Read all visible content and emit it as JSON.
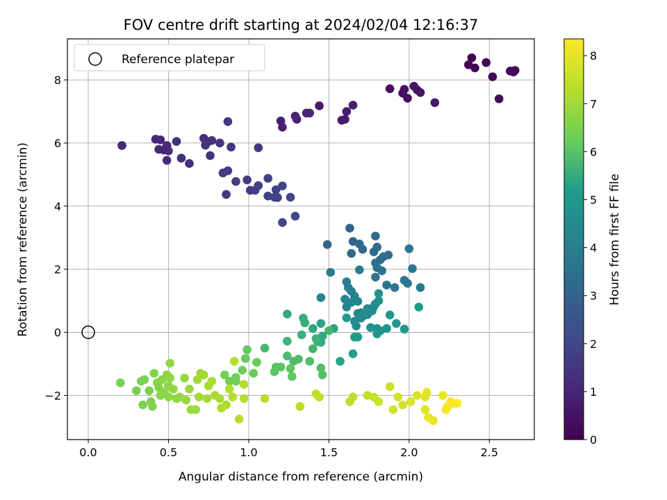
{
  "chart_data": {
    "type": "scatter",
    "title": "FOV centre drift starting at 2024/02/04 12:16:37",
    "xlabel": "Angular distance from reference (arcmin)",
    "ylabel": "Rotation from reference (arcmin)",
    "xlim": [
      -0.13,
      2.78
    ],
    "ylim": [
      -3.4,
      9.3
    ],
    "x_ticks": [
      0.0,
      0.5,
      1.0,
      1.5,
      2.0,
      2.5
    ],
    "x_tick_labels": [
      "0.0",
      "0.5",
      "1.0",
      "1.5",
      "2.0",
      "2.5"
    ],
    "y_ticks": [
      -2,
      0,
      2,
      4,
      6,
      8
    ],
    "y_tick_labels": [
      "−2",
      "0",
      "2",
      "4",
      "6",
      "8"
    ],
    "grid": true,
    "legend": {
      "position": "top-left",
      "label": "Reference platepar",
      "marker": "open-circle"
    },
    "reference_point": {
      "x": 0.0,
      "y": 0.0
    },
    "colorbar": {
      "label": "Hours from first FF file",
      "colormap": "viridis",
      "range": [
        0,
        8.35
      ],
      "ticks": [
        0,
        1,
        2,
        3,
        4,
        5,
        6,
        7,
        8
      ],
      "tick_labels": [
        "0",
        "1",
        "2",
        "3",
        "4",
        "5",
        "6",
        "7",
        "8"
      ]
    },
    "colormap_stops": [
      "#440154",
      "#482777",
      "#3f4a8a",
      "#31678e",
      "#26838f",
      "#1f9d8a",
      "#6cce5a",
      "#b6de2b",
      "#fee825"
    ],
    "series": [
      {
        "hours_range": [
          0.0,
          1.0
        ],
        "points": [
          [
            2.39,
            8.7
          ],
          [
            2.37,
            8.48
          ],
          [
            2.41,
            8.38
          ],
          [
            2.48,
            8.55
          ],
          [
            2.52,
            8.1
          ],
          [
            2.63,
            8.28
          ],
          [
            2.65,
            8.25
          ],
          [
            2.66,
            8.3
          ],
          [
            2.56,
            7.4
          ],
          [
            1.88,
            7.72
          ],
          [
            1.96,
            7.58
          ],
          [
            1.97,
            7.7
          ],
          [
            1.99,
            7.42
          ],
          [
            2.03,
            7.8
          ],
          [
            2.05,
            7.68
          ],
          [
            2.07,
            7.6
          ],
          [
            2.16,
            7.28
          ],
          [
            1.44,
            7.18
          ],
          [
            1.58,
            6.72
          ],
          [
            1.6,
            6.75
          ],
          [
            1.61,
            7.0
          ],
          [
            1.65,
            7.2
          ],
          [
            1.2,
            6.7
          ],
          [
            1.21,
            6.5
          ],
          [
            1.29,
            6.85
          ],
          [
            1.3,
            6.75
          ],
          [
            1.36,
            6.95
          ],
          [
            1.38,
            6.95
          ]
        ]
      },
      {
        "hours_range": [
          1.0,
          2.0
        ],
        "points": [
          [
            0.21,
            5.92
          ],
          [
            0.42,
            6.12
          ],
          [
            0.45,
            6.1
          ],
          [
            0.44,
            5.8
          ],
          [
            0.47,
            5.78
          ],
          [
            0.49,
            5.92
          ],
          [
            0.5,
            5.75
          ],
          [
            0.49,
            5.45
          ],
          [
            0.55,
            6.05
          ],
          [
            0.58,
            5.52
          ],
          [
            0.63,
            5.35
          ],
          [
            0.72,
            6.15
          ],
          [
            0.73,
            5.93
          ],
          [
            0.75,
            6.05
          ],
          [
            0.77,
            6.08
          ],
          [
            0.76,
            5.6
          ],
          [
            0.82,
            6.0
          ],
          [
            0.87,
            6.68
          ],
          [
            0.89,
            5.87
          ],
          [
            1.06,
            5.85
          ],
          [
            0.84,
            5.05
          ],
          [
            0.86,
            4.37
          ],
          [
            0.87,
            5.12
          ],
          [
            0.92,
            4.78
          ],
          [
            0.99,
            4.83
          ],
          [
            1.01,
            4.5
          ],
          [
            1.04,
            4.5
          ],
          [
            1.06,
            4.65
          ],
          [
            1.12,
            4.88
          ],
          [
            1.12,
            4.32
          ],
          [
            1.16,
            4.28
          ],
          [
            1.17,
            4.52
          ],
          [
            1.18,
            4.27
          ],
          [
            1.21,
            4.64
          ],
          [
            1.21,
            3.48
          ],
          [
            1.26,
            4.28
          ],
          [
            1.29,
            3.68
          ]
        ]
      },
      {
        "hours_range": [
          3.0,
          4.2
        ],
        "points": [
          [
            1.49,
            2.78
          ],
          [
            1.63,
            3.3
          ],
          [
            1.65,
            2.88
          ],
          [
            1.64,
            2.5
          ],
          [
            1.69,
            2.8
          ],
          [
            1.71,
            2.63
          ],
          [
            1.78,
            2.55
          ],
          [
            1.79,
            3.05
          ],
          [
            1.8,
            2.7
          ],
          [
            1.82,
            2.3
          ],
          [
            1.84,
            2.4
          ],
          [
            1.87,
            2.45
          ],
          [
            1.79,
            2.2
          ],
          [
            1.8,
            2.05
          ],
          [
            1.83,
            1.95
          ],
          [
            1.79,
            1.75
          ],
          [
            1.86,
            1.5
          ],
          [
            1.91,
            1.42
          ],
          [
            1.97,
            1.65
          ],
          [
            1.99,
            1.55
          ],
          [
            2.0,
            2.65
          ],
          [
            2.02,
            2.02
          ],
          [
            2.07,
            1.42
          ],
          [
            1.51,
            1.9
          ],
          [
            1.69,
            1.98
          ],
          [
            1.61,
            1.6
          ],
          [
            1.62,
            1.42
          ],
          [
            1.64,
            1.3
          ],
          [
            1.66,
            1.15
          ],
          [
            1.45,
            1.1
          ],
          [
            1.6,
            1.05
          ],
          [
            1.68,
            0.98
          ]
        ]
      },
      {
        "hours_range": [
          4.2,
          5.5
        ],
        "points": [
          [
            1.61,
            0.8
          ],
          [
            1.64,
            0.95
          ],
          [
            1.68,
            0.6
          ],
          [
            1.7,
            0.62
          ],
          [
            1.7,
            0.45
          ],
          [
            1.66,
            0.35
          ],
          [
            1.67,
            0.2
          ],
          [
            1.71,
            0.5
          ],
          [
            1.74,
            0.56
          ],
          [
            1.74,
            0.75
          ],
          [
            1.77,
            0.68
          ],
          [
            1.78,
            0.82
          ],
          [
            1.79,
            0.9
          ],
          [
            1.81,
            1.0
          ],
          [
            1.81,
            1.23
          ],
          [
            1.76,
            0.15
          ],
          [
            1.8,
            0.12
          ],
          [
            1.82,
            0.05
          ],
          [
            1.8,
            -0.05
          ],
          [
            1.86,
            0.12
          ],
          [
            1.88,
            0.55
          ],
          [
            1.92,
            0.28
          ],
          [
            1.97,
            0.1
          ],
          [
            2.06,
            0.8
          ],
          [
            1.61,
            0.46
          ],
          [
            1.66,
            -0.15
          ],
          [
            1.68,
            -0.15
          ],
          [
            1.65,
            -0.68
          ],
          [
            1.57,
            -0.92
          ],
          [
            1.53,
            0.12
          ],
          [
            1.45,
            0.28
          ],
          [
            1.4,
            0.12
          ],
          [
            1.46,
            -0.12
          ],
          [
            1.45,
            -0.32
          ]
        ]
      },
      {
        "hours_range": [
          5.5,
          6.4
        ],
        "points": [
          [
            1.24,
            0.58
          ],
          [
            1.34,
            0.45
          ],
          [
            1.35,
            0.3
          ],
          [
            1.33,
            -0.08
          ],
          [
            1.42,
            -0.2
          ],
          [
            1.43,
            -0.3
          ],
          [
            1.24,
            -0.28
          ],
          [
            1.4,
            -0.52
          ],
          [
            1.5,
            0.05
          ],
          [
            1.1,
            -0.5
          ],
          [
            1.24,
            -0.75
          ],
          [
            1.28,
            -0.92
          ],
          [
            1.31,
            -0.85
          ],
          [
            1.38,
            -0.92
          ],
          [
            1.45,
            -1.13
          ],
          [
            1.46,
            -1.35
          ],
          [
            1.17,
            -1.1
          ],
          [
            1.2,
            -1.1
          ],
          [
            1.16,
            -1.25
          ],
          [
            1.26,
            -1.15
          ],
          [
            1.27,
            -1.4
          ],
          [
            0.99,
            -0.55
          ],
          [
            0.98,
            -0.83
          ],
          [
            1.05,
            -0.95
          ],
          [
            1.03,
            -1.3
          ],
          [
            0.96,
            -1.2
          ],
          [
            0.92,
            -1.43
          ],
          [
            0.92,
            -1.55
          ],
          [
            0.88,
            -1.55
          ],
          [
            0.85,
            -1.35
          ]
        ]
      },
      {
        "hours_range": [
          6.4,
          7.4
        ],
        "points": [
          [
            0.2,
            -1.6
          ],
          [
            0.3,
            -1.85
          ],
          [
            0.33,
            -1.55
          ],
          [
            0.35,
            -1.5
          ],
          [
            0.34,
            -2.3
          ],
          [
            0.38,
            -1.85
          ],
          [
            0.39,
            -2.2
          ],
          [
            0.4,
            -2.35
          ],
          [
            0.41,
            -1.3
          ],
          [
            0.43,
            -1.6
          ],
          [
            0.44,
            -1.75
          ],
          [
            0.45,
            -2.0
          ],
          [
            0.46,
            -1.5
          ],
          [
            0.47,
            -1.9
          ],
          [
            0.49,
            -1.35
          ],
          [
            0.5,
            -1.7
          ],
          [
            0.5,
            -2.05
          ],
          [
            0.51,
            -1.45
          ],
          [
            0.51,
            -0.98
          ],
          [
            0.53,
            -1.8
          ],
          [
            0.55,
            -2.1
          ],
          [
            0.57,
            -2.05
          ],
          [
            0.6,
            -1.45
          ],
          [
            0.61,
            -2.15
          ],
          [
            0.63,
            -1.8
          ],
          [
            0.64,
            -2.45
          ],
          [
            0.67,
            -2.45
          ],
          [
            0.68,
            -1.5
          ],
          [
            0.69,
            -2.05
          ],
          [
            0.7,
            -1.3
          ],
          [
            0.72,
            -1.35
          ],
          [
            0.74,
            -2.1
          ],
          [
            0.75,
            -1.7
          ],
          [
            0.77,
            -1.55
          ],
          [
            0.79,
            -2.0
          ],
          [
            0.82,
            -2.1
          ],
          [
            0.83,
            -2.4
          ],
          [
            0.86,
            -2.3
          ],
          [
            0.88,
            -1.8
          ],
          [
            0.9,
            -2.05
          ],
          [
            0.91,
            -0.92
          ],
          [
            0.94,
            -2.75
          ],
          [
            0.97,
            -1.65
          ],
          [
            0.97,
            -2.1
          ],
          [
            1.1,
            -2.1
          ],
          [
            1.32,
            -2.35
          ],
          [
            1.42,
            -1.95
          ],
          [
            1.44,
            -2.05
          ]
        ]
      },
      {
        "hours_range": [
          7.4,
          8.35
        ],
        "points": [
          [
            1.63,
            -2.2
          ],
          [
            1.65,
            -2.05
          ],
          [
            1.74,
            -2.0
          ],
          [
            1.78,
            -2.05
          ],
          [
            1.81,
            -2.2
          ],
          [
            1.88,
            -1.72
          ],
          [
            1.9,
            -2.45
          ],
          [
            1.93,
            -2.05
          ],
          [
            1.96,
            -2.3
          ],
          [
            2.01,
            -2.2
          ],
          [
            2.05,
            -2.0
          ],
          [
            2.1,
            -2.05
          ],
          [
            2.1,
            -2.45
          ],
          [
            2.11,
            -1.9
          ],
          [
            2.12,
            -2.7
          ],
          [
            2.15,
            -2.8
          ],
          [
            2.21,
            -2.0
          ],
          [
            2.23,
            -2.45
          ],
          [
            2.24,
            -2.35
          ],
          [
            2.26,
            -2.2
          ],
          [
            2.28,
            -2.25
          ],
          [
            2.3,
            -2.25
          ]
        ]
      }
    ]
  }
}
